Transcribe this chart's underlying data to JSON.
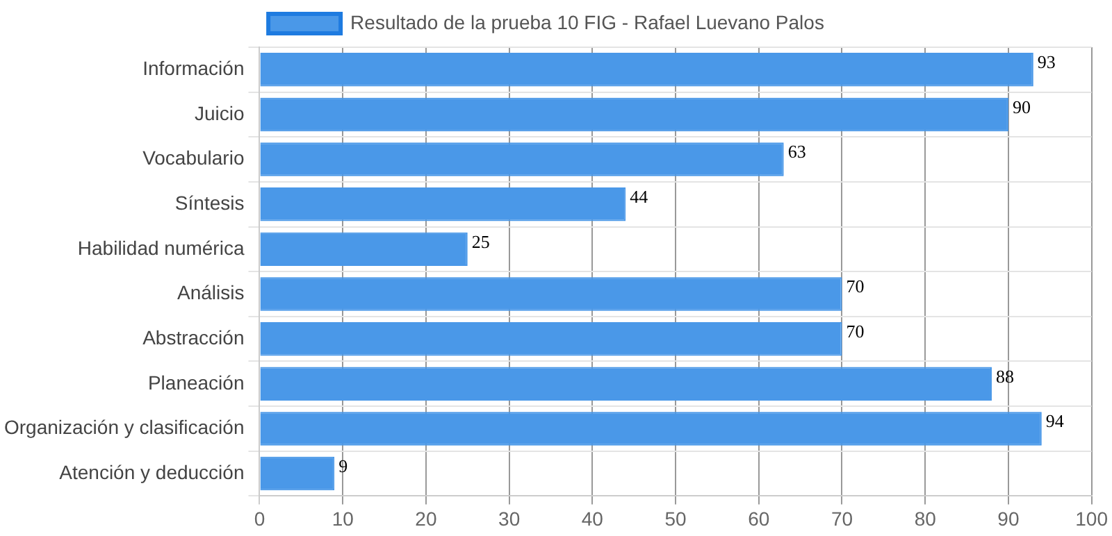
{
  "chart_data": {
    "type": "bar",
    "orientation": "horizontal",
    "categories": [
      "Información",
      "Juicio",
      "Vocabulario",
      "Síntesis",
      "Habilidad numérica",
      "Análisis",
      "Abstracción",
      "Planeación",
      "Organización y clasificación",
      "Atención y deducción"
    ],
    "series": [
      {
        "name": "Resultado de la prueba 10 FIG - Rafael Luevano Palos",
        "color": "#4a98e8",
        "values": [
          93,
          90,
          63,
          44,
          25,
          70,
          70,
          88,
          94,
          9
        ]
      }
    ],
    "xlim": [
      0,
      100
    ],
    "xticks": [
      0,
      10,
      20,
      30,
      40,
      50,
      60,
      70,
      80,
      90,
      100
    ],
    "grid": true,
    "legend": "top",
    "data_labels": true
  }
}
